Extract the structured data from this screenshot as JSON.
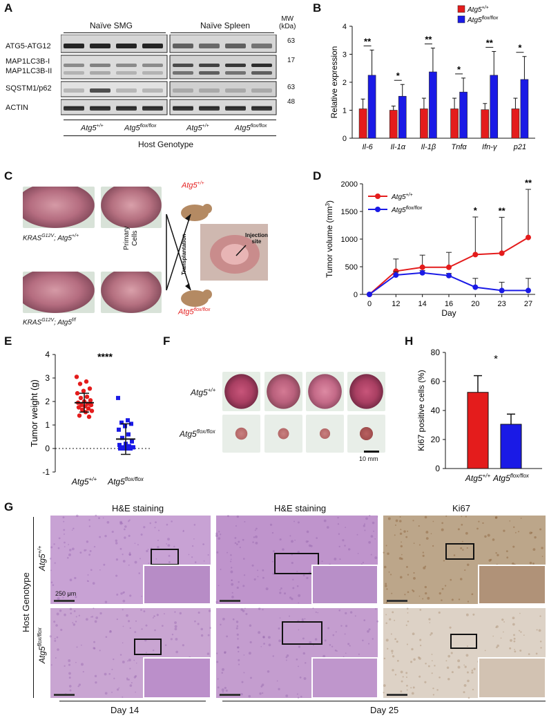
{
  "panel_letters": {
    "A": "A",
    "B": "B",
    "C": "C",
    "D": "D",
    "E": "E",
    "F": "F",
    "G": "G",
    "H": "H"
  },
  "panelA": {
    "groups": [
      "Naïve SMG",
      "Naïve Spleen"
    ],
    "mw_label": "MW\n(kDa)",
    "mw_label_line1": "MW",
    "mw_label_line2": "(kDa)",
    "blots": [
      {
        "label": "ATG5-ATG12",
        "mw": "63"
      },
      {
        "label": "MAP1LC3B-I",
        "mw": "17"
      },
      {
        "label": "MAP1LC3B-II",
        "mw": ""
      },
      {
        "label": "SQSTM1/p62",
        "mw": "63"
      },
      {
        "label": "ACTIN",
        "mw": "48"
      }
    ],
    "genotypes": [
      "Atg5",
      "+/+",
      "Atg5",
      "flox/flox",
      "Atg5",
      "+/+",
      "Atg5",
      "flox/flox"
    ],
    "host_genotype": "Host Genotype"
  },
  "colors": {
    "wt": "#e41c1c",
    "ko": "#1a1ae6",
    "wt_dark": "#c81414",
    "ko_dark": "#1010b0"
  },
  "chart_data": [
    {
      "id": "B",
      "type": "bar",
      "ylabel": "Relative expression",
      "ylim": [
        0,
        4
      ],
      "yticks": [
        "0",
        "1",
        "2",
        "3",
        "4"
      ],
      "categories": [
        "Il-6",
        "Il-1α",
        "Il-1β",
        "Tnfα",
        "Ifn-γ",
        "p21"
      ],
      "series": [
        {
          "name": "Atg5",
          "sup": "+/+",
          "values": [
            1.05,
            1.0,
            1.05,
            1.05,
            1.02,
            1.05
          ],
          "err": [
            0.35,
            0.15,
            0.38,
            0.38,
            0.22,
            0.38
          ]
        },
        {
          "name": "Atg5",
          "sup": "flox/flox",
          "values": [
            2.25,
            1.5,
            2.37,
            1.65,
            2.25,
            2.1
          ],
          "err": [
            0.9,
            0.42,
            0.85,
            0.5,
            0.85,
            0.82
          ]
        }
      ],
      "significance": [
        "**",
        "*",
        "**",
        "*",
        "**",
        "*"
      ]
    },
    {
      "id": "D",
      "type": "line",
      "ylabel": "Tumor volume (mm",
      "ylabel_sup": "3",
      "ylabel_end": ")",
      "xlabel": "Day",
      "ylim": [
        0,
        2000
      ],
      "yticks": [
        "0",
        "500",
        "1000",
        "1500",
        "2000"
      ],
      "x": [
        "0",
        "12",
        "14",
        "16",
        "20",
        "23",
        "27"
      ],
      "series": [
        {
          "name": "Atg5",
          "sup": "+/+",
          "values": [
            0,
            420,
            490,
            490,
            720,
            745,
            1030
          ],
          "err": [
            0,
            220,
            220,
            270,
            680,
            650,
            870
          ]
        },
        {
          "name": "Atg5",
          "sup": "flox/flox",
          "values": [
            0,
            350,
            390,
            340,
            130,
            70,
            70
          ],
          "err": [
            0,
            60,
            40,
            40,
            160,
            150,
            220
          ]
        }
      ],
      "significance": [
        "",
        "",
        "",
        "",
        "*",
        "**",
        "**"
      ]
    },
    {
      "id": "E",
      "type": "scatter",
      "ylabel": "Tumor weight (g)",
      "ylim": [
        -1,
        4
      ],
      "yticks": [
        "-1",
        "0",
        "1",
        "2",
        "3",
        "4"
      ],
      "categories": [
        "Atg5",
        "Atg5"
      ],
      "category_sups": [
        "+/+",
        "flox/flox"
      ],
      "significance": "****",
      "groups": [
        {
          "mean": 1.95,
          "sd": 0.4,
          "points": [
            3.05,
            2.85,
            2.75,
            2.55,
            2.45,
            2.35,
            2.2,
            2.15,
            2.05,
            2.0,
            1.95,
            1.9,
            1.85,
            1.85,
            1.8,
            1.75,
            1.7,
            1.65,
            1.6,
            1.55,
            1.4,
            1.35
          ]
        },
        {
          "mean": 0.4,
          "sd": 0.65,
          "points": [
            2.15,
            1.2,
            1.1,
            1.05,
            0.95,
            0.8,
            0.6,
            0.45,
            0.3,
            0.2,
            0.15,
            0.1,
            0.05,
            0.05,
            0.0,
            0.0,
            0.0,
            0.0,
            0.05,
            0.1,
            0.0,
            0.0
          ]
        }
      ]
    },
    {
      "id": "H",
      "type": "bar",
      "ylabel": "Ki67 positive cells (%)",
      "ylim": [
        0,
        80
      ],
      "yticks": [
        "0",
        "20",
        "40",
        "60",
        "80"
      ],
      "categories": [
        "Atg5",
        "Atg5"
      ],
      "category_sups": [
        "+/+",
        "flox/flox"
      ],
      "values": [
        52.5,
        30.5
      ],
      "err": [
        11.5,
        7.0
      ],
      "significance": "*"
    }
  ],
  "panelC": {
    "label_top_main": "KRAS",
    "label_top_sup": "G12V",
    "label_top_rest": "; Atg5",
    "label_top_sup2": "+/+",
    "label_bottom_main": "KRAS",
    "label_bottom_sup": "G12V",
    "label_bottom_rest": "; Atg5",
    "label_bottom_sup2": "f/f",
    "primary_cells": "Primary\nCells",
    "primary_1": "Primary",
    "primary_2": "Cells",
    "transplantation": "Transplantation",
    "injection_1": "Injection",
    "injection_2": "site",
    "mouse_top_main": "Atg5",
    "mouse_top_sup": "+/+",
    "mouse_bottom_main": "Atg5",
    "mouse_bottom_sup": "flox/flox"
  },
  "panelF": {
    "row1_main": "Atg5",
    "row1_sup": "+/+",
    "row2_main": "Atg5",
    "row2_sup": "flox/flox",
    "scale": "10 mm"
  },
  "panelG": {
    "columns": [
      "H&E staining",
      "H&E staining",
      "Ki67"
    ],
    "rows": [
      {
        "main": "Atg5",
        "sup": "+/+"
      },
      {
        "main": "Atg5",
        "sup": "flox/flox"
      }
    ],
    "host_genotype": "Host Genotype",
    "scale": "250 μm",
    "day14": "Day 14",
    "day25": "Day 25"
  }
}
